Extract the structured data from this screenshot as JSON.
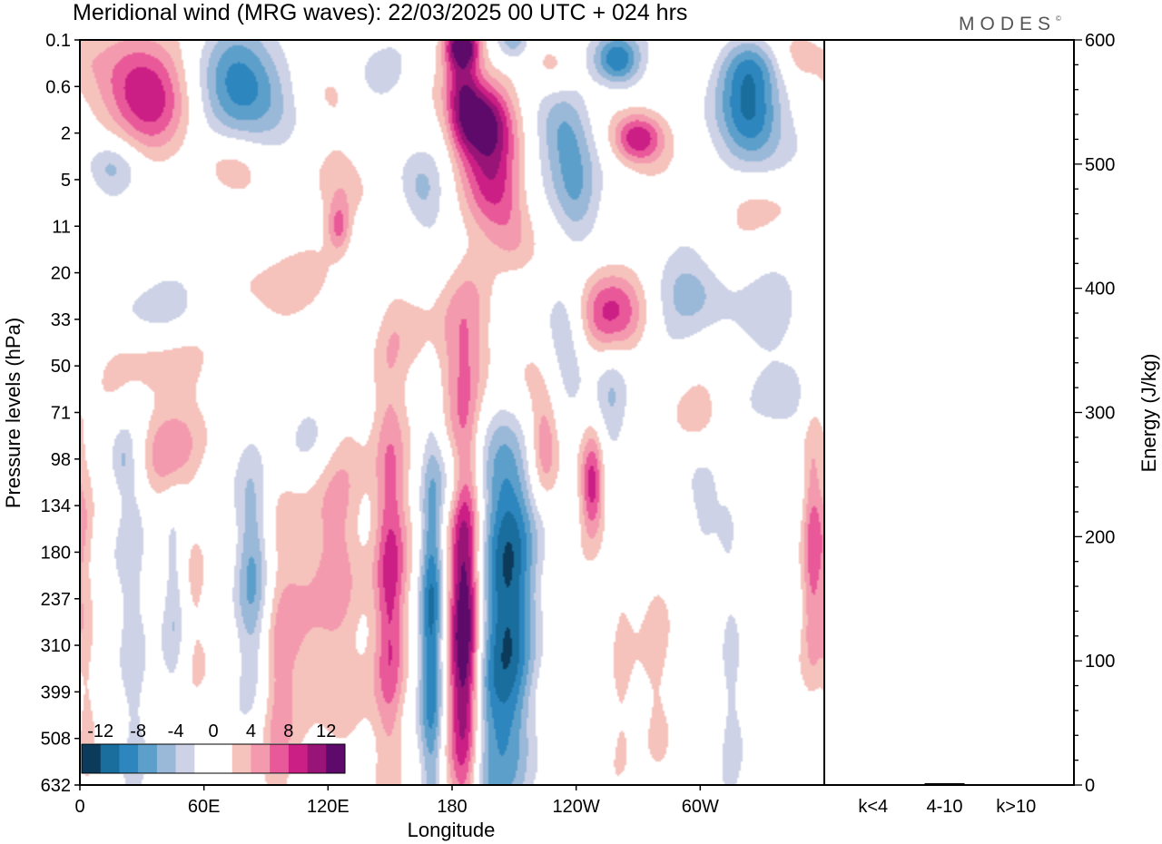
{
  "title": "Meridional wind (MRG waves):  22/03/2025  00 UTC  + 024 hrs",
  "logo": "MODES",
  "logo_mark": "©",
  "colors": {
    "neg": [
      "#0c3a5a",
      "#1a6e9e",
      "#2e86bf",
      "#5c9fca",
      "#9ab8d8",
      "#cdd2e6"
    ],
    "pos": [
      "#f6c2bc",
      "#f49aaf",
      "#e9599a",
      "#cc1f86",
      "#981577",
      "#5d0a6b"
    ],
    "neutral": "#ffffff"
  },
  "chart_data": [
    {
      "type": "heatmap",
      "name": "meridional-wind-contours",
      "xlabel": "Longitude",
      "ylabel": "Pressure levels (hPa)",
      "x_ticks": [
        "0",
        "60E",
        "120E",
        "180",
        "120W",
        "60W"
      ],
      "x_tick_values": [
        0,
        60,
        120,
        180,
        240,
        300
      ],
      "xlim": [
        0,
        360
      ],
      "y_ticks": [
        "0.1",
        "0.6",
        "2",
        "5",
        "11",
        "20",
        "33",
        "50",
        "71",
        "98",
        "134",
        "180",
        "237",
        "310",
        "399",
        "508",
        "632"
      ],
      "colorbar": {
        "labels": [
          "-12",
          "-8",
          "-4",
          "0",
          "4",
          "8",
          "12"
        ],
        "levels": [
          -14,
          -12,
          -10,
          -8,
          -6,
          -4,
          -2,
          2,
          4,
          6,
          8,
          10,
          12,
          14
        ]
      },
      "blobs": [
        {
          "lon": 186,
          "lev": 12.5,
          "v": 15,
          "sx": 5.5,
          "sy": 3.0
        },
        {
          "lon": 170,
          "lev": 12.8,
          "v": -10,
          "sx": 4.0,
          "sy": 3.0
        },
        {
          "lon": 207,
          "lev": 11.5,
          "v": -12,
          "sx": 9.0,
          "sy": 3.8
        },
        {
          "lon": 150,
          "lev": 10.5,
          "v": 7,
          "sx": 6.0,
          "sy": 2.8
        },
        {
          "lon": 125,
          "lev": 11.5,
          "v": 5,
          "sx": 9.0,
          "sy": 2.8
        },
        {
          "lon": 100,
          "lev": 12.0,
          "v": 4,
          "sx": 9.0,
          "sy": 2.5
        },
        {
          "lon": 83,
          "lev": 11.2,
          "v": -7,
          "sx": 6.0,
          "sy": 1.8
        },
        {
          "lon": 25,
          "lev": 12.5,
          "v": -4,
          "sx": 5.0,
          "sy": 2.6
        },
        {
          "lon": 45,
          "lev": 12.0,
          "v": -3.5,
          "sx": 4.0,
          "sy": 1.5
        },
        {
          "lon": 55,
          "lev": 11.8,
          "v": 3,
          "sx": 5.0,
          "sy": 1.5
        },
        {
          "lon": 248,
          "lev": 9.6,
          "v": 9,
          "sx": 4.0,
          "sy": 0.8
        },
        {
          "lon": 262,
          "lev": 12.5,
          "v": 2.5,
          "sx": 4.0,
          "sy": 2.5
        },
        {
          "lon": 300,
          "lev": 9.6,
          "v": -3,
          "sx": 8.0,
          "sy": 0.7
        },
        {
          "lon": 315,
          "lev": 13.5,
          "v": -3,
          "sx": 4.0,
          "sy": 2.5
        },
        {
          "lon": 355,
          "lev": 10.8,
          "v": 7,
          "sx": 4.0,
          "sy": 2.0
        },
        {
          "lon": 3,
          "lev": 13.0,
          "v": 3,
          "sx": 3.0,
          "sy": 3.0
        },
        {
          "lon": 210,
          "lev": 7.5,
          "v": 5,
          "sx": 9.0,
          "sy": 1.2
        },
        {
          "lon": 195,
          "lev": 6.5,
          "v": 4,
          "sx": 12.0,
          "sy": 1.2
        },
        {
          "lon": 225,
          "lev": 8.7,
          "v": 6,
          "sx": 5.0,
          "sy": 0.9
        },
        {
          "lon": 162,
          "lev": 6.4,
          "v": 3,
          "sx": 20.0,
          "sy": 0.9
        },
        {
          "lon": 235,
          "lev": 6.3,
          "v": -5,
          "sx": 8.0,
          "sy": 0.8
        },
        {
          "lon": 258,
          "lev": 7.8,
          "v": -5,
          "sx": 6.0,
          "sy": 1.0
        },
        {
          "lon": 255,
          "lev": 5.8,
          "v": 9,
          "sx": 12.0,
          "sy": 0.7
        },
        {
          "lon": 295,
          "lev": 5.4,
          "v": -5,
          "sx": 14.0,
          "sy": 0.6
        },
        {
          "lon": 340,
          "lev": 6.2,
          "v": -3,
          "sx": 14.0,
          "sy": 0.8
        },
        {
          "lon": 90,
          "lev": 5.2,
          "v": 3,
          "sx": 25.0,
          "sy": 0.6
        },
        {
          "lon": 40,
          "lev": 5.8,
          "v": -3,
          "sx": 25.0,
          "sy": 0.6
        },
        {
          "lon": 140,
          "lev": 6.0,
          "v": -3,
          "sx": 10.0,
          "sy": 1.0
        },
        {
          "lon": 35,
          "lev": 6.8,
          "v": 3,
          "sx": 22.0,
          "sy": 0.6
        },
        {
          "lon": 200,
          "lev": 3.1,
          "v": 8,
          "sx": 10.0,
          "sy": 0.8
        },
        {
          "lon": 210,
          "lev": 4.2,
          "v": 5,
          "sx": 8.0,
          "sy": 0.7
        },
        {
          "lon": 165,
          "lev": 3.2,
          "v": -5,
          "sx": 8.0,
          "sy": 0.6
        },
        {
          "lon": 240,
          "lev": 3.4,
          "v": -6,
          "sx": 8.0,
          "sy": 0.8
        },
        {
          "lon": 130,
          "lev": 3.2,
          "v": 4,
          "sx": 10.0,
          "sy": 0.5
        },
        {
          "lon": 65,
          "lev": 3.7,
          "v": -2.5,
          "sx": 12.0,
          "sy": 0.5
        },
        {
          "lon": 125,
          "lev": 4.0,
          "v": 6,
          "sx": 4.0,
          "sy": 0.4
        },
        {
          "lon": 330,
          "lev": 3.5,
          "v": 3,
          "sx": 15.0,
          "sy": 0.5
        },
        {
          "lon": 15,
          "lev": 2.7,
          "v": -5,
          "sx": 10.0,
          "sy": 0.4
        },
        {
          "lon": 195,
          "lev": 1.7,
          "v": 13,
          "sx": 10.0,
          "sy": 0.6
        },
        {
          "lon": 185,
          "lev": 0.9,
          "v": 8,
          "sx": 6.0,
          "sy": 1.0
        },
        {
          "lon": 270,
          "lev": 2.1,
          "v": 11,
          "sx": 9.0,
          "sy": 0.4
        },
        {
          "lon": 325,
          "lev": 1.6,
          "v": -11,
          "sx": 11.0,
          "sy": 0.8
        },
        {
          "lon": 235,
          "lev": 1.9,
          "v": -6,
          "sx": 10.0,
          "sy": 0.7
        },
        {
          "lon": 325,
          "lev": 0.5,
          "v": -4,
          "sx": 10.0,
          "sy": 0.4
        },
        {
          "lon": 260,
          "lev": 0.4,
          "v": -10,
          "sx": 8.0,
          "sy": 0.4
        },
        {
          "lon": 210,
          "lev": 0.0,
          "v": -6,
          "sx": 6.0,
          "sy": 0.3
        },
        {
          "lon": 185,
          "lev": 0.1,
          "v": 10,
          "sx": 6.0,
          "sy": 0.3
        },
        {
          "lon": 30,
          "lev": 1.1,
          "v": 11,
          "sx": 14.0,
          "sy": 0.8
        },
        {
          "lon": 80,
          "lev": 1.0,
          "v": -10,
          "sx": 15.0,
          "sy": 0.8
        },
        {
          "lon": 115,
          "lev": 1.1,
          "v": 3,
          "sx": 12.0,
          "sy": 0.5
        },
        {
          "lon": 70,
          "lev": 2.7,
          "v": 4,
          "sx": 12.0,
          "sy": 0.5
        },
        {
          "lon": 145,
          "lev": 0.7,
          "v": -3,
          "sx": 8.0,
          "sy": 0.4
        },
        {
          "lon": 230,
          "lev": 0.6,
          "v": 4,
          "sx": 8.0,
          "sy": 0.4
        },
        {
          "lon": 350,
          "lev": 0.3,
          "v": 4,
          "sx": 10.0,
          "sy": 0.4
        },
        {
          "lon": 45,
          "lev": 8.4,
          "v": 3,
          "sx": 14.0,
          "sy": 0.7
        },
        {
          "lon": 110,
          "lev": 8.5,
          "v": -3,
          "sx": 12.0,
          "sy": 0.7
        },
        {
          "lon": 300,
          "lev": 8.2,
          "v": 3,
          "sx": 10.0,
          "sy": 0.5
        },
        {
          "lon": 340,
          "lev": 7.8,
          "v": -3,
          "sx": 10.0,
          "sy": 0.5
        },
        {
          "lon": 20,
          "lev": 9.0,
          "v": -3,
          "sx": 4.0,
          "sy": 0.5
        },
        {
          "lon": 40,
          "lev": 8.9,
          "v": 3,
          "sx": 8.0,
          "sy": 0.6
        },
        {
          "lon": 180,
          "lev": 9.5,
          "v": -3,
          "sx": 6.0,
          "sy": 0.6
        },
        {
          "lon": 150,
          "lev": 14.0,
          "v": 3,
          "sx": 5.0,
          "sy": 2.5
        },
        {
          "lon": 195,
          "lev": 14.5,
          "v": -3,
          "sx": 6.0,
          "sy": 2.2
        },
        {
          "lon": 280,
          "lev": 14.0,
          "v": 3,
          "sx": 6.0,
          "sy": 2.0
        },
        {
          "lon": 95,
          "lev": 14.5,
          "v": 2.5,
          "sx": 5.0,
          "sy": 2.0
        }
      ]
    },
    {
      "type": "bar",
      "name": "energy-bars",
      "ylabel": "Energy (J/kg)",
      "ylim": [
        0,
        600
      ],
      "y_ticks": [
        0,
        100,
        200,
        300,
        400,
        500,
        600
      ],
      "categories": [
        "k<4",
        "4-10",
        "k>10"
      ],
      "values": [
        0.5,
        1.5,
        0.5
      ]
    }
  ]
}
